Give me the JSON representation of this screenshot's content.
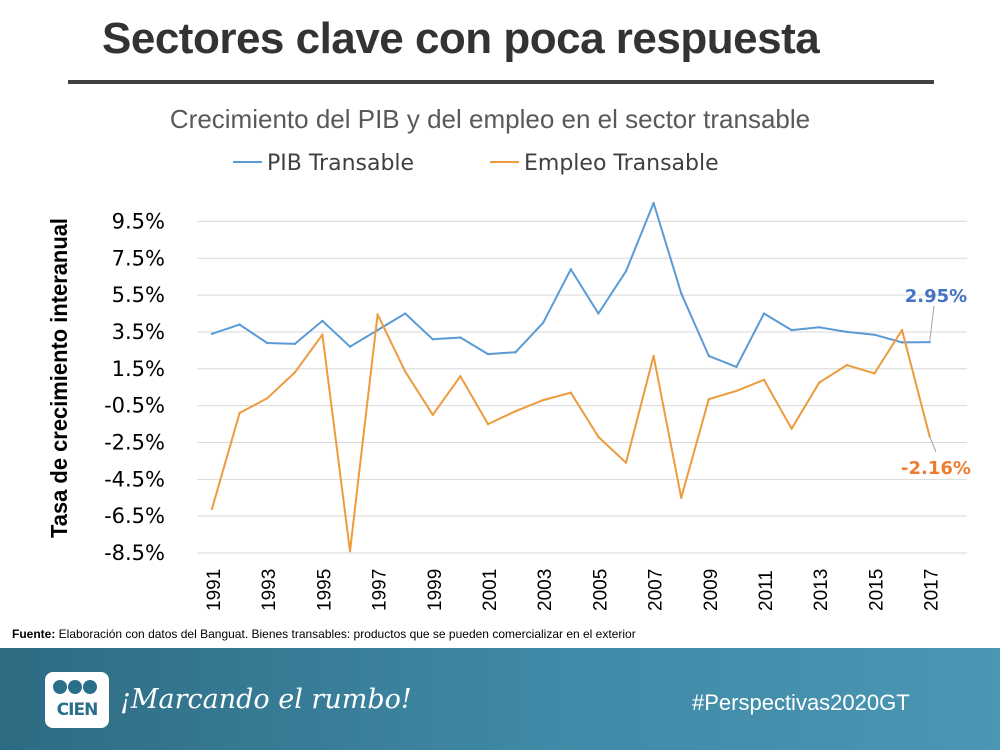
{
  "slide": {
    "title": "Sectores clave con poca respuesta",
    "footnote_label": "Fuente:",
    "footnote_text": " Elaboración con datos del Banguat. Bienes transables: productos que se pueden comercializar en el exterior",
    "slogan": "¡Marcando el rumbo!",
    "hashtag": "#Perspectivas2020GT",
    "logo_text": "CIEN"
  },
  "colors": {
    "pib": "#5B9BD5",
    "empleo": "#ED9B3D",
    "pib_label": "#4472C4",
    "empleo_label": "#ED7D31"
  },
  "chart_data": {
    "type": "line",
    "title": "Crecimiento del PIB y del empleo en el sector transable",
    "ylabel": "Tasa de crecimiento interanual",
    "xlabel": "",
    "x": [
      1991,
      1992,
      1993,
      1994,
      1995,
      1996,
      1997,
      1998,
      1999,
      2000,
      2001,
      2002,
      2003,
      2004,
      2005,
      2006,
      2007,
      2008,
      2009,
      2010,
      2011,
      2012,
      2013,
      2014,
      2015,
      2016,
      2017
    ],
    "xtick_labels": [
      "1991",
      "1993",
      "1995",
      "1997",
      "1999",
      "2001",
      "2003",
      "2005",
      "2007",
      "2009",
      "2011",
      "2013",
      "2015",
      "2017"
    ],
    "ytick_labels": [
      "9.5%",
      "7.5%",
      "5.5%",
      "3.5%",
      "1.5%",
      "-0.5%",
      "-2.5%",
      "-4.5%",
      "-6.5%",
      "-8.5%"
    ],
    "ylim": [
      -8.5,
      10.5
    ],
    "grid": true,
    "legend_position": "top",
    "series": [
      {
        "name": "PIB Transable",
        "values": [
          3.4,
          3.9,
          2.9,
          2.85,
          4.1,
          2.7,
          3.6,
          4.5,
          3.1,
          3.2,
          2.3,
          2.4,
          4.0,
          6.9,
          4.5,
          6.8,
          10.5,
          5.6,
          2.2,
          1.6,
          4.5,
          3.6,
          3.75,
          3.5,
          3.35,
          2.93,
          2.95
        ],
        "end_label": "2.95%"
      },
      {
        "name": "Empleo Transable",
        "values": [
          -6.1,
          -0.9,
          -0.1,
          1.3,
          3.35,
          -8.4,
          4.45,
          1.35,
          -1.0,
          1.1,
          -1.5,
          -0.8,
          -0.2,
          0.2,
          -2.2,
          -3.6,
          2.2,
          -5.5,
          -0.15,
          0.3,
          0.9,
          -1.75,
          0.75,
          1.7,
          1.25,
          3.6,
          -2.16
        ],
        "end_label": "-2.16%"
      }
    ]
  }
}
